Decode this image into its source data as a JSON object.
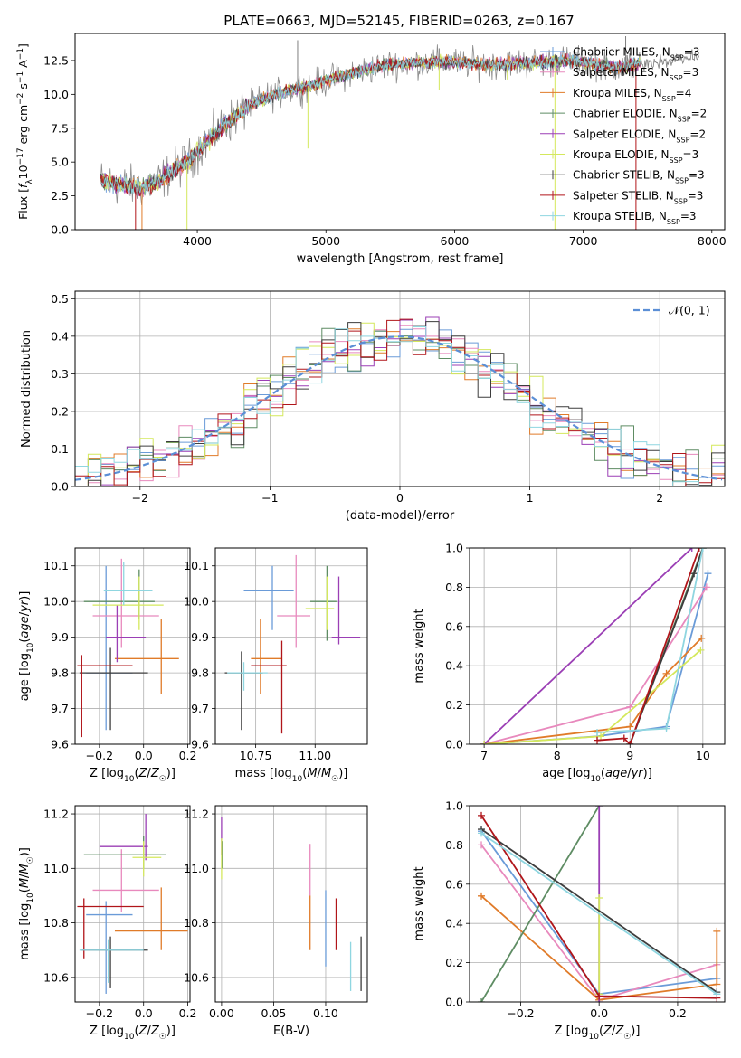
{
  "figure": {
    "title": "PLATE=0663, MJD=52145, FIBERID=0263, z=0.167"
  },
  "colors": {
    "chabrier_miles": "#6a9bd8",
    "salpeter_miles": "#e889bd",
    "kroupa_miles": "#e07b29",
    "chabrier_elodie": "#5e8c63",
    "salpeter_elodie": "#9b3fb5",
    "kroupa_elodie": "#d4e85c",
    "chabrier_stelib": "#3d3d3d",
    "salpeter_stelib": "#b0151a",
    "kroupa_stelib": "#8fd6e0",
    "data_gray": "#7f7f7f",
    "gauss": "#5b8fd6"
  },
  "chart_data": [
    {
      "id": "spectrum",
      "type": "line",
      "xlabel": "wavelength [Angstrom, rest frame]",
      "ylabel": "Flux [f_λ 10^-17 erg cm^-2 s^-1 A^-1]",
      "xlim": [
        3050,
        8100
      ],
      "ylim": [
        0,
        14.5
      ],
      "xticks": [
        4000,
        5000,
        6000,
        7000,
        8000
      ],
      "yticks": [
        0.0,
        2.5,
        5.0,
        7.5,
        10.0,
        12.5
      ],
      "xtick_labels": [
        "4000",
        "5000",
        "6000",
        7000,
        "8000"
      ],
      "ytick_labels": [
        "0.0",
        "2.5",
        "5.0",
        "7.5",
        "10.0",
        "12.5"
      ],
      "legend_position": "top-right",
      "legend": [
        {
          "base": "Chabrier MILES, N",
          "sub": "SSP",
          "tail": "=3",
          "color_key": "chabrier_miles"
        },
        {
          "base": "Salpeter MILES, N",
          "sub": "SSP",
          "tail": "=3",
          "color_key": "salpeter_miles"
        },
        {
          "base": "Kroupa MILES, N",
          "sub": "SSP",
          "tail": "=4",
          "color_key": "kroupa_miles"
        },
        {
          "base": "Chabrier ELODIE, N",
          "sub": "SSP",
          "tail": "=2",
          "color_key": "chabrier_elodie"
        },
        {
          "base": "Salpeter ELODIE, N",
          "sub": "SSP",
          "tail": "=2",
          "color_key": "salpeter_elodie"
        },
        {
          "base": "Kroupa ELODIE, N",
          "sub": "SSP",
          "tail": "=3",
          "color_key": "kroupa_elodie"
        },
        {
          "base": "Chabrier STELIB, N",
          "sub": "SSP",
          "tail": "=3",
          "color_key": "chabrier_stelib"
        },
        {
          "base": "Salpeter STELIB, N",
          "sub": "SSP",
          "tail": "=3",
          "color_key": "salpeter_stelib"
        },
        {
          "base": "Kroupa STELIB, N",
          "sub": "SSP",
          "tail": "=3",
          "color_key": "kroupa_stelib"
        }
      ],
      "continuum_knots": {
        "x": [
          3250,
          3400,
          3550,
          3700,
          3850,
          3950,
          4050,
          4200,
          4350,
          4500,
          4700,
          4900,
          5100,
          5300,
          5500,
          5700,
          5900,
          6100,
          6300,
          6500,
          6700,
          6900,
          7100,
          7300,
          7450
        ],
        "y": [
          3.6,
          3.3,
          3.1,
          3.6,
          4.6,
          5.2,
          6.3,
          7.6,
          8.8,
          9.6,
          10.3,
          10.7,
          11.3,
          11.8,
          12.2,
          12.3,
          12.4,
          12.3,
          12.2,
          12.3,
          12.4,
          12.5,
          12.2,
          12.0,
          12.3
        ]
      },
      "tail_segment": {
        "x": [
          7450,
          7900
        ],
        "y": [
          12.3,
          12.8
        ]
      },
      "emission_spikes": [
        {
          "x": 4780,
          "y": 14.0
        },
        {
          "x": 5880,
          "y": 13.4
        },
        {
          "x": 7330,
          "y": 14.3
        },
        {
          "x": 7340,
          "y": 12.9
        }
      ],
      "absorption_spikes": [
        {
          "x": 3520,
          "y": 0.0
        },
        {
          "x": 3570,
          "y": 0.0
        },
        {
          "x": 3920,
          "y": 0.0
        },
        {
          "x": 6780,
          "y": 0.0
        },
        {
          "x": 7410,
          "y": 0.0
        },
        {
          "x": 4860,
          "y": 6.0
        },
        {
          "x": 5880,
          "y": 10.3
        },
        {
          "x": 6410,
          "y": 11.1
        }
      ]
    },
    {
      "id": "residuals",
      "type": "histogram",
      "xlabel": "(data-model)/error",
      "ylabel": "Normed distribution",
      "xlim": [
        -2.5,
        2.5
      ],
      "ylim": [
        0,
        0.52
      ],
      "xticks": [
        -2,
        -1,
        0,
        1,
        2
      ],
      "yticks": [
        0.0,
        0.1,
        0.2,
        0.3,
        0.4,
        0.5
      ],
      "xtick_labels": [
        "−2",
        "−1",
        "0",
        "1",
        "2"
      ],
      "ytick_labels": [
        "0.0",
        "0.1",
        "0.2",
        "0.3",
        "0.4",
        "0.5"
      ],
      "bin_width": 0.1,
      "legend_position": "top-right",
      "gaussian_label": "𝒩(0, 1)",
      "series_order": [
        "chabrier_miles",
        "salpeter_miles",
        "kroupa_miles",
        "chabrier_elodie",
        "salpeter_elodie",
        "kroupa_elodie",
        "chabrier_stelib",
        "salpeter_stelib",
        "kroupa_stelib"
      ]
    },
    {
      "id": "age_vs_Z",
      "type": "errorbar",
      "xlabel": "Z [log10(Z/Z☉)]",
      "ylabel": "age  [log10(age/yr)]",
      "xlim": [
        -0.31,
        0.21
      ],
      "ylim": [
        9.6,
        10.15
      ],
      "xticks": [
        -0.2,
        0.0,
        0.2
      ],
      "yticks": [
        9.6,
        9.7,
        9.8,
        9.9,
        10.0,
        10.1
      ],
      "xtick_labels": [
        "−0.2",
        "0.0",
        "0.2"
      ],
      "ytick_labels": [
        "9.6",
        "9.7",
        "9.8",
        "9.9",
        "10.0",
        "10.1"
      ],
      "points": [
        {
          "key": "chabrier_miles",
          "x": -0.17,
          "y": 9.8,
          "xlo": -0.26,
          "xhi": -0.05,
          "ylo": 9.64,
          "yhi": 10.1
        },
        {
          "key": "salpeter_miles",
          "x": -0.1,
          "y": 9.96,
          "xlo": -0.23,
          "xhi": 0.07,
          "ylo": 9.87,
          "yhi": 10.12
        },
        {
          "key": "kroupa_miles",
          "x": 0.08,
          "y": 9.84,
          "xlo": -0.13,
          "xhi": 0.16,
          "ylo": 9.74,
          "yhi": 9.95
        },
        {
          "key": "chabrier_elodie",
          "x": -0.02,
          "y": 10.0,
          "xlo": -0.27,
          "xhi": 0.05,
          "ylo": 9.95,
          "yhi": 10.09
        },
        {
          "key": "salpeter_elodie",
          "x": -0.12,
          "y": 9.9,
          "xlo": -0.17,
          "xhi": 0.01,
          "ylo": 9.83,
          "yhi": 9.99
        },
        {
          "key": "kroupa_elodie",
          "x": -0.02,
          "y": 9.99,
          "xlo": -0.23,
          "xhi": 0.09,
          "ylo": 9.92,
          "yhi": 10.07
        },
        {
          "key": "chabrier_stelib",
          "x": -0.15,
          "y": 9.8,
          "xlo": -0.29,
          "xhi": 0.02,
          "ylo": 9.64,
          "yhi": 9.87
        },
        {
          "key": "salpeter_stelib",
          "x": -0.28,
          "y": 9.82,
          "xlo": -0.3,
          "xhi": -0.05,
          "ylo": 9.62,
          "yhi": 9.85
        },
        {
          "key": "kroupa_stelib",
          "x": -0.09,
          "y": 10.03,
          "xlo": -0.18,
          "xhi": 0.04,
          "ylo": 9.99,
          "yhi": 10.11
        }
      ]
    },
    {
      "id": "age_vs_mass",
      "type": "errorbar",
      "xlabel": "mass [log10(M/M☉)]",
      "ylabel": "",
      "xlim": [
        10.58,
        11.22
      ],
      "ylim": [
        9.6,
        10.15
      ],
      "xticks": [
        10.75,
        11.0
      ],
      "yticks": [
        9.6,
        9.7,
        9.8,
        9.9,
        10.0,
        10.1
      ],
      "xtick_labels": [
        "10.75",
        "11.00"
      ],
      "ytick_labels": [
        "9.6",
        "9.7",
        "9.8",
        "9.9",
        "10.0",
        "10.1"
      ],
      "points": [
        {
          "key": "chabrier_miles",
          "x": 10.82,
          "y": 10.03,
          "xlo": 10.7,
          "xhi": 10.91,
          "ylo": 9.92,
          "yhi": 10.1
        },
        {
          "key": "salpeter_miles",
          "x": 10.92,
          "y": 9.96,
          "xlo": 10.84,
          "xhi": 10.98,
          "ylo": 9.87,
          "yhi": 10.13
        },
        {
          "key": "kroupa_miles",
          "x": 10.77,
          "y": 9.84,
          "xlo": 10.73,
          "xhi": 10.86,
          "ylo": 9.74,
          "yhi": 9.95
        },
        {
          "key": "chabrier_elodie",
          "x": 11.05,
          "y": 10.0,
          "xlo": 10.98,
          "xhi": 11.09,
          "ylo": 9.89,
          "yhi": 10.1
        },
        {
          "key": "salpeter_elodie",
          "x": 11.1,
          "y": 9.9,
          "xlo": 11.07,
          "xhi": 11.19,
          "ylo": 9.88,
          "yhi": 10.07
        },
        {
          "key": "kroupa_elodie",
          "x": 11.05,
          "y": 9.98,
          "xlo": 10.96,
          "xhi": 11.08,
          "ylo": 9.92,
          "yhi": 10.07
        },
        {
          "key": "chabrier_stelib",
          "x": 10.69,
          "y": 9.8,
          "xlo": 10.62,
          "xhi": 10.78,
          "ylo": 9.64,
          "yhi": 9.86
        },
        {
          "key": "salpeter_stelib",
          "x": 10.86,
          "y": 9.82,
          "xlo": 10.73,
          "xhi": 10.88,
          "ylo": 9.63,
          "yhi": 9.89
        },
        {
          "key": "kroupa_stelib",
          "x": 10.7,
          "y": 9.8,
          "xlo": 10.63,
          "xhi": 10.8,
          "ylo": 9.75,
          "yhi": 9.83
        }
      ]
    },
    {
      "id": "mass_weight_vs_age",
      "type": "line",
      "xlabel": "age  [log10(age/yr)]",
      "ylabel": "mass weight",
      "xlim": [
        6.8,
        10.3
      ],
      "ylim": [
        0,
        1
      ],
      "xticks": [
        7,
        8,
        9,
        10
      ],
      "yticks": [
        0.0,
        0.2,
        0.4,
        0.6,
        0.8,
        1.0
      ],
      "xtick_labels": [
        "7",
        "8",
        "9",
        "10"
      ],
      "ytick_labels": [
        "0.0",
        "0.2",
        "0.4",
        "0.6",
        "0.8",
        "1.0"
      ],
      "series": [
        {
          "key": "chabrier_miles",
          "x": [
            7.0,
            8.55,
            9.5,
            10.07
          ],
          "y": [
            0.0,
            0.04,
            0.09,
            0.87
          ]
        },
        {
          "key": "salpeter_miles",
          "x": [
            7.0,
            9.0,
            10.05
          ],
          "y": [
            0.0,
            0.19,
            0.8
          ]
        },
        {
          "key": "kroupa_miles",
          "x": [
            7.0,
            9.0,
            9.5,
            9.98
          ],
          "y": [
            0.0,
            0.09,
            0.36,
            0.54
          ]
        },
        {
          "key": "chabrier_elodie",
          "x": [
            9.0,
            10.0
          ],
          "y": [
            0.0,
            1.0
          ]
        },
        {
          "key": "salpeter_elodie",
          "x": [
            7.0,
            9.85
          ],
          "y": [
            0.0,
            1.0
          ]
        },
        {
          "key": "kroupa_elodie",
          "x": [
            7.0,
            8.6,
            9.97
          ],
          "y": [
            0.0,
            0.04,
            0.48
          ]
        },
        {
          "key": "chabrier_stelib",
          "x": [
            9.0,
            9.88,
            10.0
          ],
          "y": [
            0.0,
            0.87,
            1.0
          ]
        },
        {
          "key": "salpeter_stelib",
          "x": [
            8.55,
            8.92,
            9.0,
            9.95
          ],
          "y": [
            0.02,
            0.03,
            0.0,
            1.0
          ]
        },
        {
          "key": "kroupa_stelib",
          "x": [
            8.55,
            9.5,
            10.0
          ],
          "y": [
            0.06,
            0.08,
            1.0
          ]
        }
      ]
    },
    {
      "id": "mass_vs_Z",
      "type": "errorbar",
      "xlabel": "Z [log10(Z/Z☉)]",
      "ylabel": "mass [log10(M/M☉)]",
      "xlim": [
        -0.31,
        0.21
      ],
      "ylim": [
        10.51,
        11.23
      ],
      "xticks": [
        -0.2,
        0.0,
        0.2
      ],
      "yticks": [
        10.6,
        10.8,
        11.0,
        11.2
      ],
      "xtick_labels": [
        "−0.2",
        "0.0",
        "0.2"
      ],
      "ytick_labels": [
        "10.6",
        "10.8",
        "11.0",
        "11.2"
      ],
      "points": [
        {
          "key": "chabrier_miles",
          "x": -0.17,
          "y": 10.83,
          "xlo": -0.26,
          "xhi": -0.05,
          "ylo": 10.54,
          "yhi": 10.88
        },
        {
          "key": "salpeter_miles",
          "x": -0.1,
          "y": 10.92,
          "xlo": -0.23,
          "xhi": 0.07,
          "ylo": 10.84,
          "yhi": 11.07
        },
        {
          "key": "kroupa_miles",
          "x": 0.08,
          "y": 10.77,
          "xlo": -0.13,
          "xhi": 0.2,
          "ylo": 10.7,
          "yhi": 10.93
        },
        {
          "key": "chabrier_elodie",
          "x": 0.0,
          "y": 11.05,
          "xlo": -0.27,
          "xhi": 0.1,
          "ylo": 11.0,
          "yhi": 11.12
        },
        {
          "key": "salpeter_elodie",
          "x": 0.01,
          "y": 11.08,
          "xlo": -0.2,
          "xhi": 0.02,
          "ylo": 11.03,
          "yhi": 11.2
        },
        {
          "key": "kroupa_elodie",
          "x": 0.0,
          "y": 11.04,
          "xlo": -0.05,
          "xhi": 0.08,
          "ylo": 10.97,
          "yhi": 11.1
        },
        {
          "key": "chabrier_stelib",
          "x": -0.15,
          "y": 10.7,
          "xlo": -0.28,
          "xhi": 0.02,
          "ylo": 10.56,
          "yhi": 10.75
        },
        {
          "key": "salpeter_stelib",
          "x": -0.27,
          "y": 10.86,
          "xlo": -0.3,
          "xhi": 0.0,
          "ylo": 10.67,
          "yhi": 10.89
        },
        {
          "key": "kroupa_stelib",
          "x": -0.16,
          "y": 10.7,
          "xlo": -0.29,
          "xhi": 0.0,
          "ylo": 10.58,
          "yhi": 10.74
        }
      ]
    },
    {
      "id": "mass_vs_ebv",
      "type": "errorbar",
      "xlabel": "E(B-V)",
      "ylabel": "",
      "xlim": [
        -0.006,
        0.14
      ],
      "ylim": [
        10.51,
        11.23
      ],
      "xticks": [
        0.0,
        0.05,
        0.1
      ],
      "yticks": [
        10.6,
        10.8,
        11.0,
        11.2
      ],
      "xtick_labels": [
        "0.00",
        "0.05",
        "0.10"
      ],
      "ytick_labels": [
        "10.6",
        "10.8",
        "11.0",
        "11.2"
      ],
      "points": [
        {
          "key": "salpeter_miles",
          "x": 0.085,
          "y": 11.0,
          "xlo": 0.085,
          "xhi": 0.085,
          "ylo": 10.9,
          "yhi": 11.09
        },
        {
          "key": "kroupa_miles",
          "x": 0.085,
          "y": 10.8,
          "xlo": 0.085,
          "xhi": 0.085,
          "ylo": 10.7,
          "yhi": 10.9
        },
        {
          "key": "chabrier_miles",
          "x": 0.1,
          "y": 10.8,
          "xlo": 0.1,
          "xhi": 0.1,
          "ylo": 10.64,
          "yhi": 10.92
        },
        {
          "key": "salpeter_stelib",
          "x": 0.11,
          "y": 10.8,
          "xlo": 0.11,
          "xhi": 0.11,
          "ylo": 10.7,
          "yhi": 10.89
        },
        {
          "key": "kroupa_stelib",
          "x": 0.124,
          "y": 10.65,
          "xlo": 0.124,
          "xhi": 0.124,
          "ylo": 10.55,
          "yhi": 10.73
        },
        {
          "key": "chabrier_stelib",
          "x": 0.134,
          "y": 10.66,
          "xlo": 0.134,
          "xhi": 0.134,
          "ylo": 10.55,
          "yhi": 10.75
        },
        {
          "key": "salpeter_elodie",
          "x": 0.0,
          "y": 11.12,
          "xlo": 0.0,
          "xhi": 0.0,
          "ylo": 11.05,
          "yhi": 11.19
        },
        {
          "key": "kroupa_elodie",
          "x": 0.0,
          "y": 11.02,
          "xlo": 0.0,
          "xhi": 0.0,
          "ylo": 10.96,
          "yhi": 11.11
        },
        {
          "key": "chabrier_elodie",
          "x": 0.001,
          "y": 11.05,
          "xlo": 0.001,
          "xhi": 0.001,
          "ylo": 11.0,
          "yhi": 11.1
        }
      ]
    },
    {
      "id": "mass_weight_vs_Z",
      "type": "line",
      "xlabel": "Z [log10(Z/Z☉)]",
      "ylabel": "mass weight",
      "xlim": [
        -0.33,
        0.32
      ],
      "ylim": [
        0,
        1
      ],
      "xticks": [
        -0.2,
        0.0,
        0.2
      ],
      "yticks": [
        0.0,
        0.2,
        0.4,
        0.6,
        0.8,
        1.0
      ],
      "xtick_labels": [
        "−0.2",
        "0.0",
        "0.2"
      ],
      "ytick_labels": [
        "0.0",
        "0.2",
        "0.4",
        "0.6",
        "0.8",
        "1.0"
      ],
      "series": [
        {
          "key": "chabrier_miles",
          "x": [
            -0.3,
            0.0,
            0.3
          ],
          "y": [
            0.87,
            0.04,
            0.12
          ]
        },
        {
          "key": "salpeter_miles",
          "x": [
            -0.3,
            0.0,
            0.3
          ],
          "y": [
            0.8,
            0.01,
            0.19
          ]
        },
        {
          "key": "kroupa_miles",
          "x": [
            -0.3,
            0.0,
            0.3,
            0.3
          ],
          "y": [
            0.54,
            0.01,
            0.09,
            0.36
          ]
        },
        {
          "key": "chabrier_elodie",
          "x": [
            -0.3,
            0.0
          ],
          "y": [
            0.0,
            1.0
          ]
        },
        {
          "key": "salpeter_elodie",
          "x": [
            0.0,
            0.0
          ],
          "y": [
            1.0,
            0.0
          ]
        },
        {
          "key": "kroupa_elodie",
          "x": [
            0.0,
            0.0
          ],
          "y": [
            0.04,
            0.53
          ]
        },
        {
          "key": "chabrier_stelib",
          "x": [
            -0.3,
            0.3
          ],
          "y": [
            0.88,
            0.05
          ]
        },
        {
          "key": "salpeter_stelib",
          "x": [
            -0.3,
            0.0,
            0.3
          ],
          "y": [
            0.95,
            0.03,
            0.02
          ]
        },
        {
          "key": "kroupa_stelib",
          "x": [
            -0.3,
            0.3
          ],
          "y": [
            0.86,
            0.04
          ]
        }
      ]
    }
  ]
}
